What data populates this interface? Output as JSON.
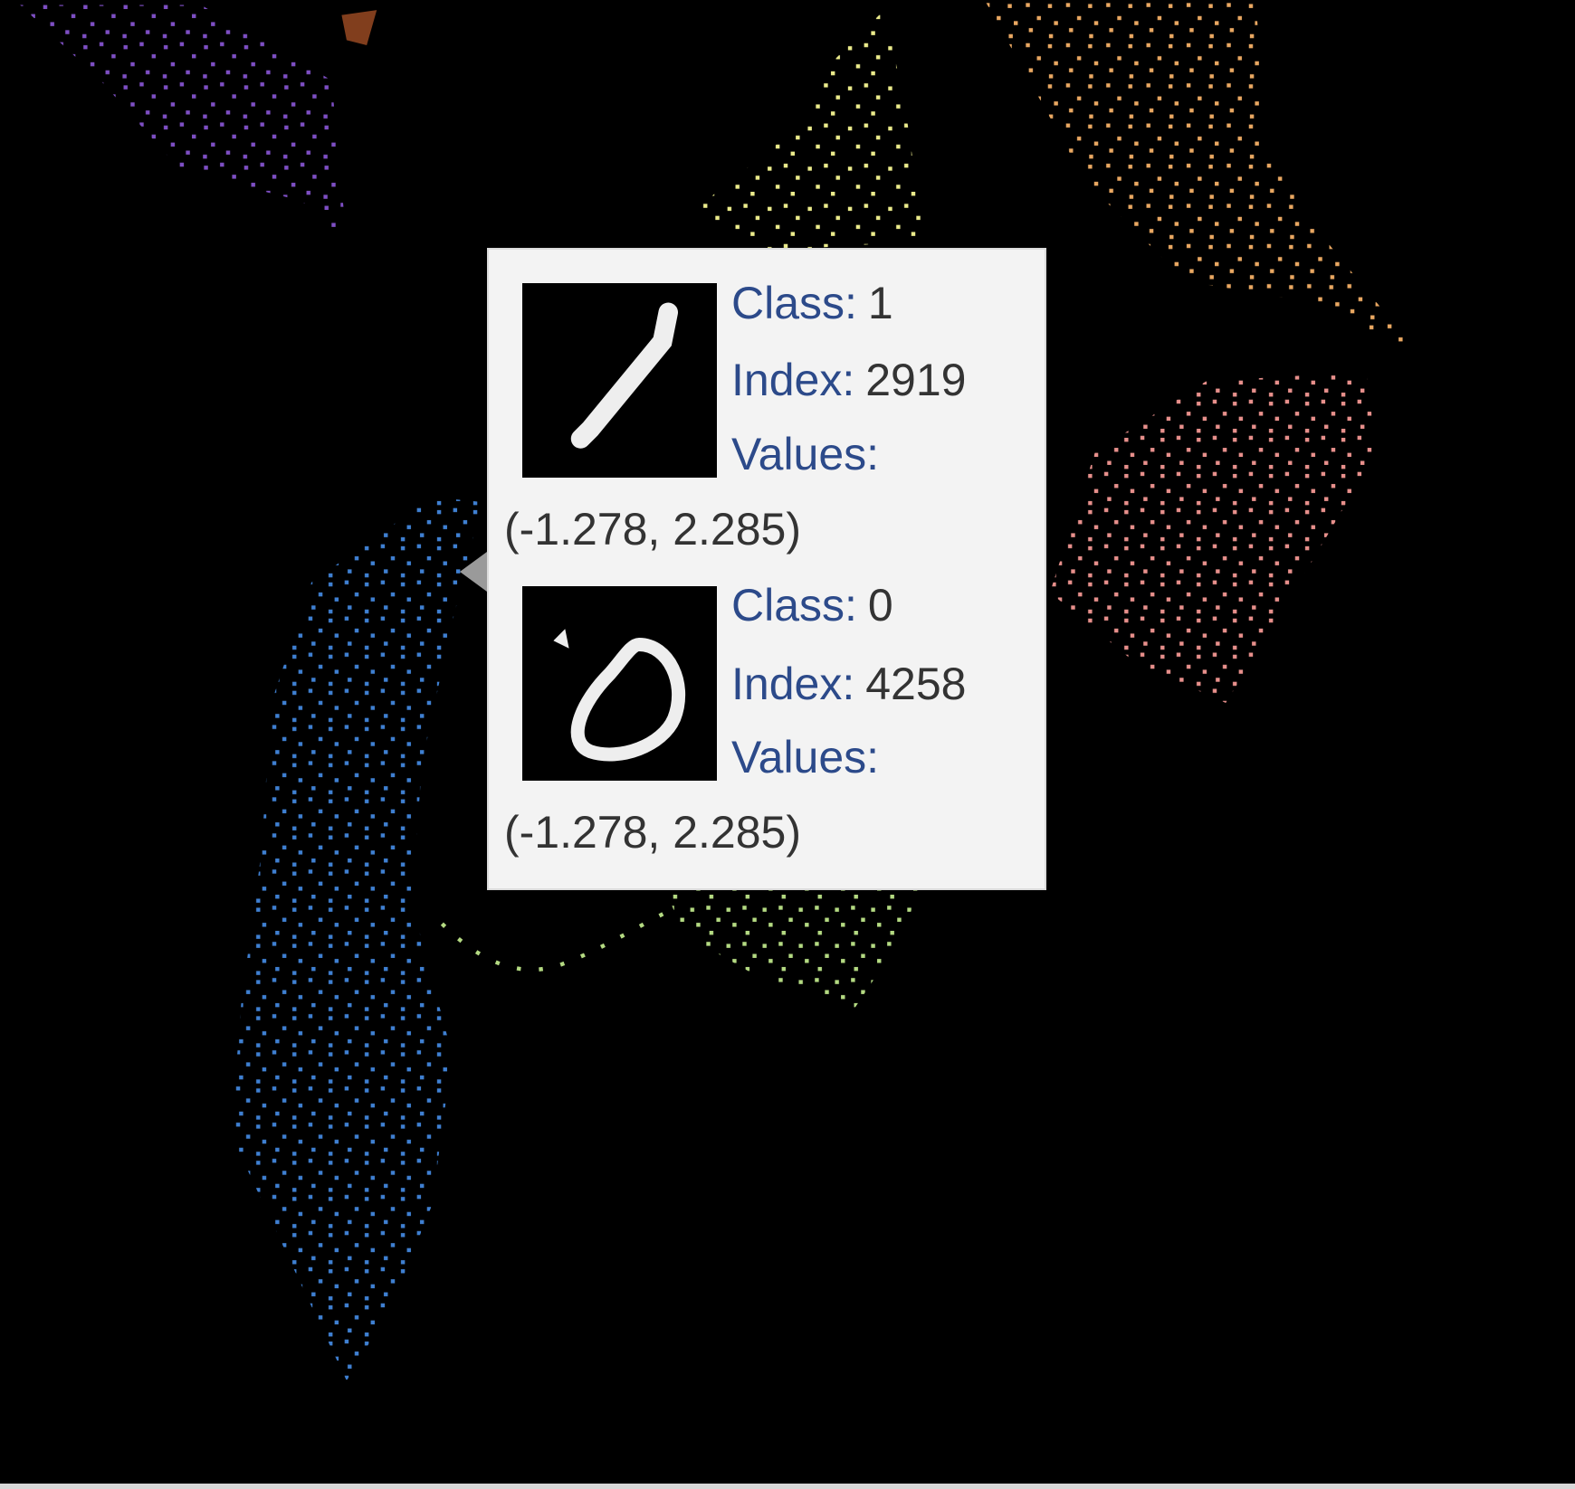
{
  "tooltip": {
    "items": [
      {
        "class_label": "Class:",
        "class": 1,
        "index_label": "Index:",
        "index": 2919,
        "values_label": "Values:",
        "values": "(-1.278, 2.285)"
      },
      {
        "class_label": "Class:",
        "class": 0,
        "index_label": "Index:",
        "index": 4258,
        "values_label": "Values:",
        "values": "(-1.278, 2.285)"
      }
    ]
  }
}
